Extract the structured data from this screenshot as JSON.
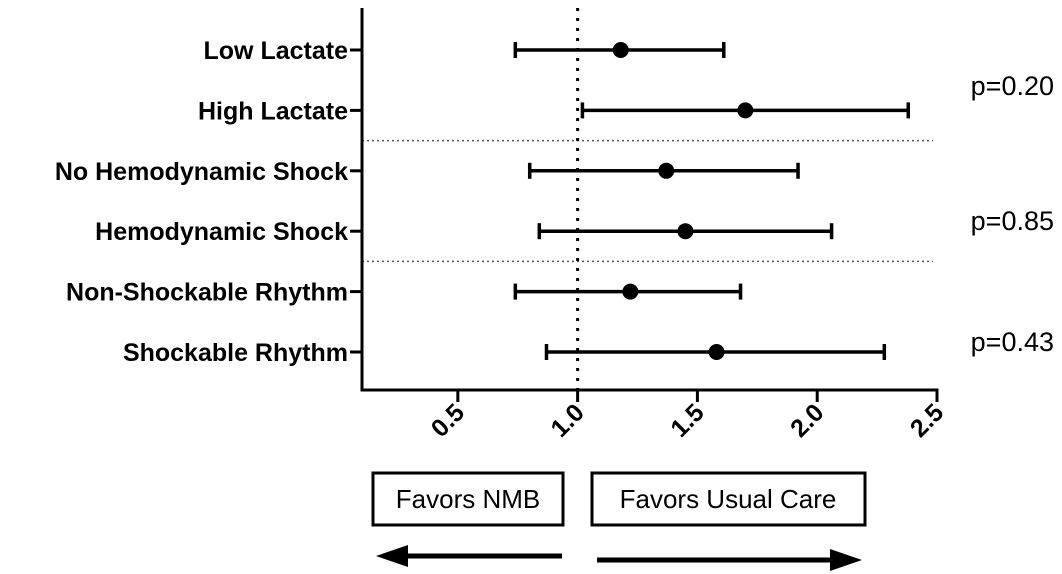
{
  "chart_data": {
    "type": "forest",
    "x_axis": {
      "xlim": [
        0.1,
        2.5
      ],
      "ticks": [
        0.5,
        1.0,
        1.5,
        2.0,
        2.5
      ],
      "tick_labels": [
        "0.5",
        "1.0",
        "1.5",
        "2.0",
        "2.5"
      ],
      "reference_line": 1.0
    },
    "rows": [
      {
        "label": "Low Lactate",
        "estimate": 1.18,
        "lower": 0.74,
        "upper": 1.61
      },
      {
        "label": "High Lactate",
        "estimate": 1.7,
        "lower": 1.02,
        "upper": 2.38
      },
      {
        "label": "No Hemodynamic Shock",
        "estimate": 1.37,
        "lower": 0.8,
        "upper": 1.92
      },
      {
        "label": "Hemodynamic Shock",
        "estimate": 1.45,
        "lower": 0.84,
        "upper": 2.06
      },
      {
        "label": "Non-Shockable Rhythm",
        "estimate": 1.22,
        "lower": 0.74,
        "upper": 1.68
      },
      {
        "label": "Shockable Rhythm",
        "estimate": 1.58,
        "lower": 0.87,
        "upper": 2.28
      }
    ],
    "groups": [
      {
        "rows": [
          0,
          1
        ],
        "p_value": "p=0.20"
      },
      {
        "rows": [
          2,
          3
        ],
        "p_value": "p=0.85"
      },
      {
        "rows": [
          4,
          5
        ],
        "p_value": "p=0.43"
      }
    ],
    "direction_labels": {
      "left": "Favors NMB",
      "right": "Favors Usual Care"
    },
    "grid": false
  }
}
